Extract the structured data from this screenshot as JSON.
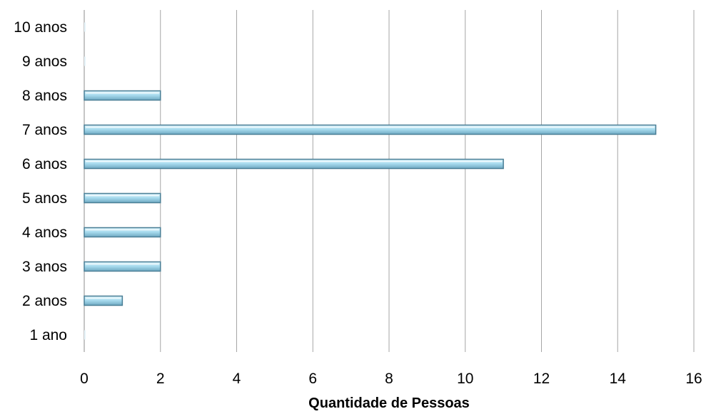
{
  "chart_data": {
    "type": "bar",
    "orientation": "horizontal",
    "categories": [
      "1 ano",
      "2 anos",
      "3 anos",
      "4 anos",
      "5 anos",
      "6 anos",
      "7 anos",
      "8 anos",
      "9 anos",
      "10 anos"
    ],
    "values": [
      0,
      1,
      2,
      2,
      2,
      11,
      15,
      2,
      0,
      0
    ],
    "title": "",
    "xlabel": "Quantidade de Pessoas",
    "ylabel": "",
    "xlim": [
      0,
      16
    ],
    "x_ticks": [
      0,
      2,
      4,
      6,
      8,
      10,
      12,
      14,
      16
    ],
    "grid": "vertical",
    "legend": "none",
    "bar_color": "#a9dcef",
    "bar_edge_color": "#4a7f96"
  }
}
